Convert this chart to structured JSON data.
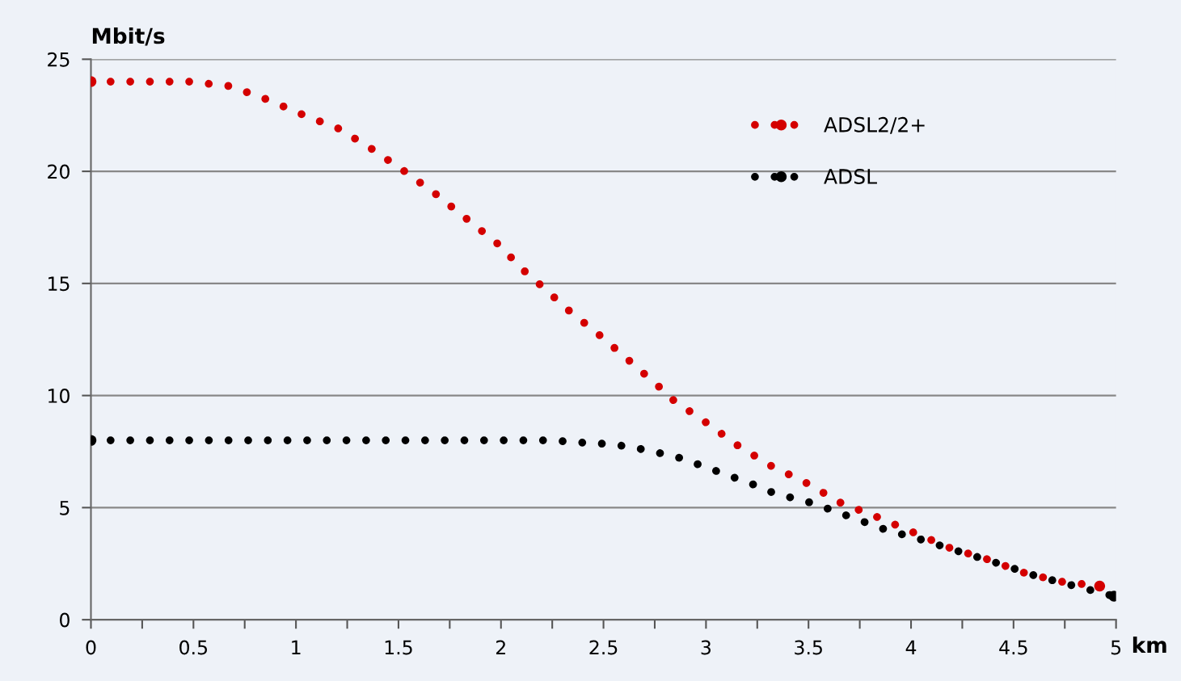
{
  "chart_data": {
    "type": "line",
    "xlabel": "km",
    "ylabel": "Mbit/s",
    "xlim": [
      0,
      5
    ],
    "ylim": [
      0,
      25
    ],
    "xticks": [
      0,
      {
        "value": 0.25,
        "label": null
      },
      0.5,
      {
        "value": 0.75,
        "label": null
      },
      1,
      {
        "value": 1.25,
        "label": null
      },
      1.5,
      {
        "value": 1.75,
        "label": null
      },
      2,
      {
        "value": 2.25,
        "label": null
      },
      2.5,
      {
        "value": 2.75,
        "label": null
      },
      3,
      {
        "value": 3.25,
        "label": null
      },
      3.5,
      {
        "value": 3.75,
        "label": null
      },
      4,
      {
        "value": 4.25,
        "label": null
      },
      4.5,
      {
        "value": 4.75,
        "label": null
      },
      5
    ],
    "yticks": [
      0,
      5,
      10,
      15,
      20,
      25
    ],
    "grid": "y",
    "legend": "top right",
    "line_style": "dotted",
    "marker": "none",
    "series": [
      {
        "name": "ADSL2/2+",
        "color": "#d40000",
        "x": [
          0,
          0.48,
          0.58,
          0.68,
          0.86,
          1.04,
          1.21,
          1.37,
          1.53,
          1.68,
          1.83,
          1.98,
          2.12,
          2.19,
          2.33,
          2.48,
          2.62,
          2.77,
          2.84,
          3.0,
          3.15,
          3.31,
          3.49,
          3.66,
          3.83,
          4.01,
          4.19,
          4.37,
          4.55,
          4.73,
          4.92
        ],
        "values": [
          24.0,
          24.0,
          23.9,
          23.8,
          23.2,
          22.5,
          21.9,
          21.0,
          20.0,
          19.0,
          17.9,
          16.8,
          15.5,
          14.95,
          13.8,
          12.7,
          11.6,
          10.4,
          9.8,
          8.8,
          7.8,
          6.9,
          6.1,
          5.2,
          4.6,
          3.9,
          3.2,
          2.7,
          2.1,
          1.7,
          1.5
        ]
      },
      {
        "name": "ADSL",
        "color": "#000000",
        "x": [
          0,
          2.24,
          2.4,
          2.5,
          2.6,
          2.69,
          2.79,
          2.88,
          2.97,
          3.06,
          3.15,
          3.24,
          3.33,
          3.52,
          3.7,
          3.88,
          4.06,
          4.25,
          4.43,
          4.61,
          4.8,
          4.99
        ],
        "values": [
          8.0,
          8.0,
          7.9,
          7.85,
          7.75,
          7.6,
          7.4,
          7.2,
          6.9,
          6.6,
          6.3,
          6.0,
          5.65,
          5.2,
          4.6,
          4.0,
          3.55,
          3.0,
          2.5,
          1.95,
          1.5,
          1.05
        ]
      }
    ]
  }
}
